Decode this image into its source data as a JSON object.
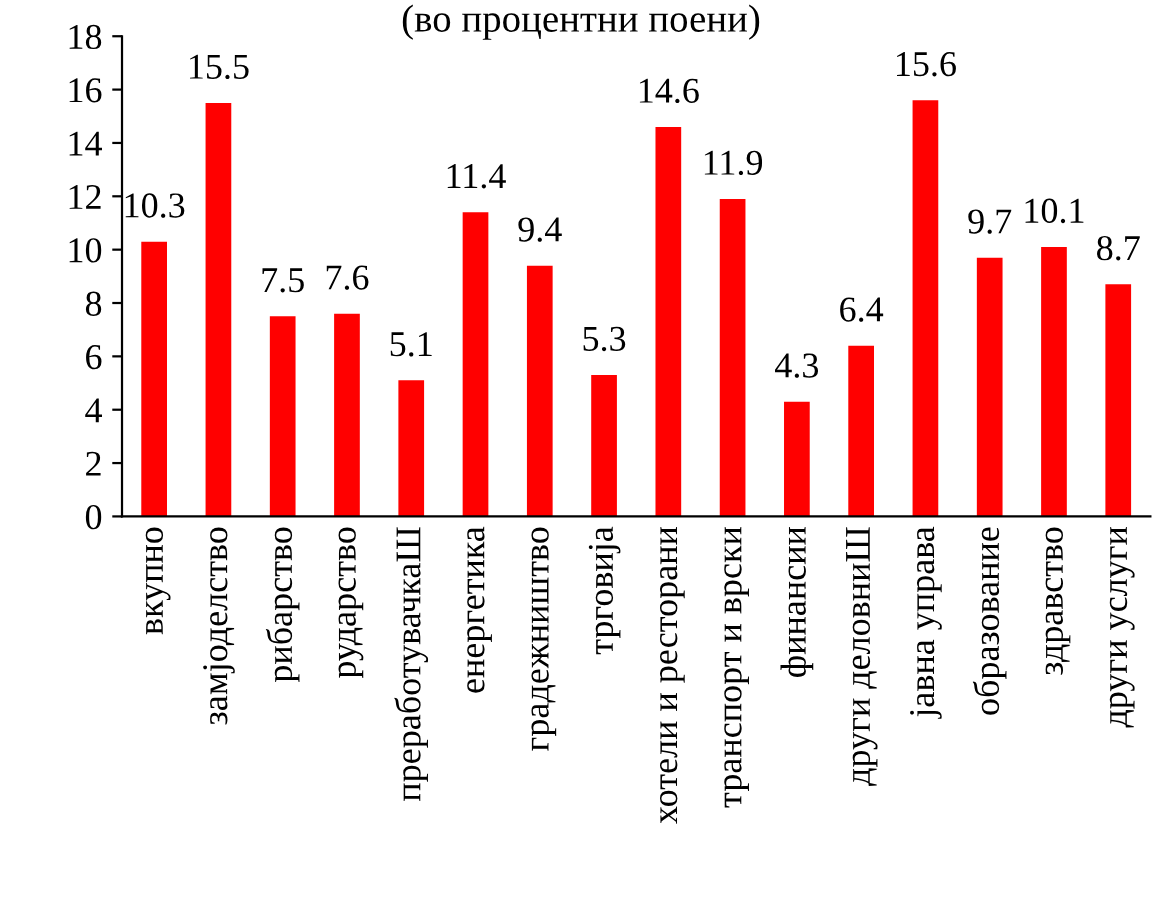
{
  "chart_data": {
    "type": "bar",
    "title": "(во процентни поени)",
    "categories": [
      "вкупно",
      "замјоделство",
      "рибарство",
      "рударство",
      "преработувачкаШ",
      "енергетика",
      "градежништво",
      "трговија",
      "хотели и ресторани",
      "транспорт и врски",
      "финансии",
      "други деловниШ",
      "јавна управа",
      "образование",
      "здравство",
      "други услуги"
    ],
    "values": [
      10.3,
      15.5,
      7.5,
      7.6,
      5.1,
      11.4,
      9.4,
      5.3,
      14.6,
      11.9,
      4.3,
      6.4,
      15.6,
      9.7,
      10.1,
      8.7
    ],
    "color": "#ff0000",
    "ylim": [
      0,
      18
    ],
    "yticks": [
      0,
      2,
      4,
      6,
      8,
      10,
      12,
      14,
      16,
      18
    ],
    "data_labels": true,
    "grid": false,
    "legend": false
  }
}
